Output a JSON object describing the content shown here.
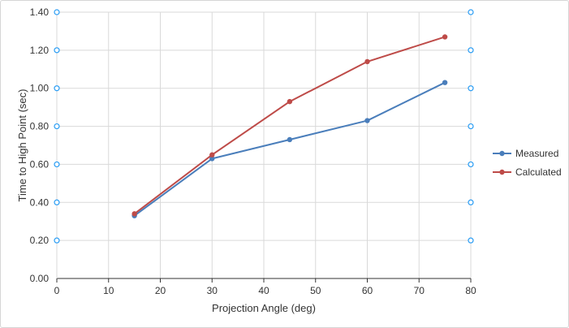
{
  "chart_data": {
    "type": "line",
    "title": "",
    "xlabel": "Projection Angle (deg)",
    "ylabel": "Time to High Point (sec)",
    "xlim": [
      0,
      80
    ],
    "ylim": [
      0,
      1.4
    ],
    "x_ticks": [
      "0",
      "10",
      "20",
      "30",
      "40",
      "50",
      "60",
      "70",
      "80"
    ],
    "y_ticks": [
      "0.00",
      "0.20",
      "0.40",
      "0.60",
      "0.80",
      "1.00",
      "1.20",
      "1.40"
    ],
    "grid": true,
    "legend_position": "right",
    "series": [
      {
        "name": "Measured",
        "color": "#4a7ebb",
        "x": [
          15,
          30,
          45,
          60,
          75
        ],
        "y": [
          0.33,
          0.63,
          0.73,
          0.83,
          1.03
        ]
      },
      {
        "name": "Calculated",
        "color": "#be4b48",
        "x": [
          15,
          30,
          45,
          60,
          75
        ],
        "y": [
          0.34,
          0.65,
          0.93,
          1.14,
          1.27
        ]
      }
    ],
    "handle_color": "#2a9df4"
  }
}
